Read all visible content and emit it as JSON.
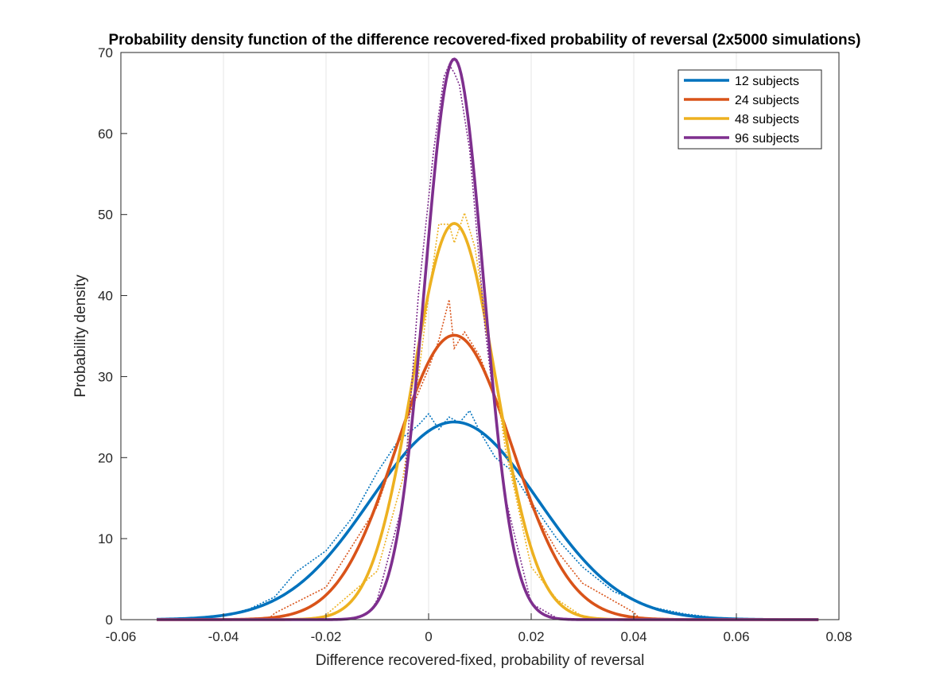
{
  "chart_data": {
    "type": "line",
    "title": "Probability density function of the difference recovered-fixed probability of reversal (2x5000 simulations)",
    "xlabel": "Difference recovered-fixed, probability of reversal",
    "ylabel": "Probability density",
    "xlim": [
      -0.06,
      0.08
    ],
    "ylim": [
      0,
      70
    ],
    "xticks": [
      -0.06,
      -0.04,
      -0.02,
      0,
      0.02,
      0.04,
      0.06,
      0.08
    ],
    "xtick_labels": [
      "-0.06",
      "-0.04",
      "-0.02",
      "0",
      "0.02",
      "0.04",
      "0.06",
      "0.08"
    ],
    "yticks": [
      0,
      10,
      20,
      30,
      40,
      50,
      60,
      70
    ],
    "ytick_labels": [
      "0",
      "10",
      "20",
      "30",
      "40",
      "50",
      "60",
      "70"
    ],
    "grid": "vertical",
    "legend_position": "top-right",
    "x_range": [
      -0.053,
      0.076
    ],
    "series": [
      {
        "name": "12 subjects",
        "color": "#0072BD",
        "mean": 0.005,
        "peak": 24.4,
        "sd": 0.0163,
        "empirical": [
          [
            -0.04,
            0.5
          ],
          [
            -0.035,
            1.3
          ],
          [
            -0.03,
            2.8
          ],
          [
            -0.026,
            5.8
          ],
          [
            -0.02,
            8.5
          ],
          [
            -0.015,
            12.5
          ],
          [
            -0.01,
            18.2
          ],
          [
            -0.006,
            22.0
          ],
          [
            -0.002,
            24.0
          ],
          [
            0,
            25.4
          ],
          [
            0.002,
            23.5
          ],
          [
            0.004,
            25.0
          ],
          [
            0.006,
            24.3
          ],
          [
            0.008,
            25.8
          ],
          [
            0.01,
            23.2
          ],
          [
            0.013,
            20.0
          ],
          [
            0.016,
            18.5
          ],
          [
            0.02,
            14.5
          ],
          [
            0.025,
            10.0
          ],
          [
            0.03,
            6.5
          ],
          [
            0.036,
            3.5
          ],
          [
            0.043,
            1.6
          ],
          [
            0.05,
            0.7
          ],
          [
            0.055,
            0.3
          ]
        ]
      },
      {
        "name": "24 subjects",
        "color": "#D95319",
        "mean": 0.005,
        "peak": 35.1,
        "sd": 0.0113,
        "empirical": [
          [
            -0.03,
            0.8
          ],
          [
            -0.02,
            4.0
          ],
          [
            -0.01,
            14.0
          ],
          [
            -0.005,
            23.5
          ],
          [
            0,
            31.0
          ],
          [
            0.002,
            34.5
          ],
          [
            0.004,
            39.5
          ],
          [
            0.005,
            33.5
          ],
          [
            0.007,
            35.5
          ],
          [
            0.01,
            32.5
          ],
          [
            0.015,
            24.0
          ],
          [
            0.02,
            14.0
          ],
          [
            0.025,
            8.5
          ],
          [
            0.03,
            4.5
          ],
          [
            0.04,
            0.9
          ]
        ]
      },
      {
        "name": "48 subjects",
        "color": "#EDB120",
        "mean": 0.005,
        "peak": 48.9,
        "sd": 0.0081,
        "empirical": [
          [
            -0.02,
            0.6
          ],
          [
            -0.01,
            6.0
          ],
          [
            -0.005,
            17.5
          ],
          [
            -0.002,
            30.0
          ],
          [
            0,
            40.0
          ],
          [
            0.002,
            48.8
          ],
          [
            0.004,
            48.8
          ],
          [
            0.005,
            46.5
          ],
          [
            0.007,
            50.2
          ],
          [
            0.009,
            46.0
          ],
          [
            0.012,
            34.0
          ],
          [
            0.015,
            21.0
          ],
          [
            0.02,
            6.5
          ],
          [
            0.025,
            2.5
          ],
          [
            0.03,
            0.4
          ]
        ]
      },
      {
        "name": "96 subjects",
        "color": "#7E2F8E",
        "mean": 0.005,
        "peak": 69.2,
        "sd": 0.0057,
        "empirical": [
          [
            -0.01,
            2.5
          ],
          [
            -0.005,
            14.5
          ],
          [
            -0.002,
            40.0
          ],
          [
            0.001,
            58.0
          ],
          [
            0.003,
            67.0
          ],
          [
            0.004,
            68.5
          ],
          [
            0.005,
            67.5
          ],
          [
            0.006,
            66.0
          ],
          [
            0.008,
            58.0
          ],
          [
            0.011,
            36.0
          ],
          [
            0.015,
            15.0
          ],
          [
            0.02,
            2.0
          ],
          [
            0.025,
            0.2
          ]
        ]
      }
    ]
  }
}
